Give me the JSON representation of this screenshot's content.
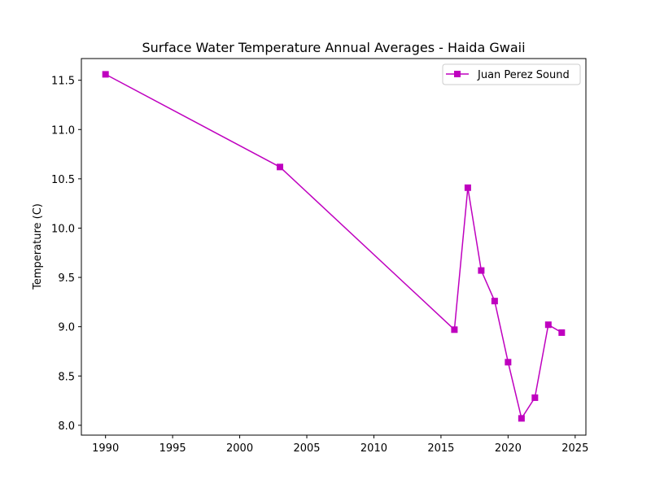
{
  "chart_data": {
    "type": "line",
    "title": "Surface Water Temperature Annual Averages - Haida Gwaii",
    "xlabel": "",
    "ylabel": "Temperature (C)",
    "xlim": [
      1988.2,
      2025.8
    ],
    "ylim": [
      7.9,
      11.72
    ],
    "xticks": [
      1990,
      1995,
      2000,
      2005,
      2010,
      2015,
      2020,
      2025
    ],
    "yticks": [
      8.0,
      8.5,
      9.0,
      9.5,
      10.0,
      10.5,
      11.0,
      11.5
    ],
    "grid": false,
    "legend_position": "top-right",
    "series": [
      {
        "name": "Juan Perez Sound",
        "color": "#bf00bf",
        "marker": "square",
        "x": [
          1990,
          2003,
          2016,
          2017,
          2018,
          2019,
          2020,
          2021,
          2022,
          2023,
          2024
        ],
        "y": [
          11.56,
          10.62,
          8.97,
          10.41,
          9.57,
          9.26,
          8.64,
          8.07,
          8.28,
          9.02,
          8.94
        ]
      }
    ]
  }
}
